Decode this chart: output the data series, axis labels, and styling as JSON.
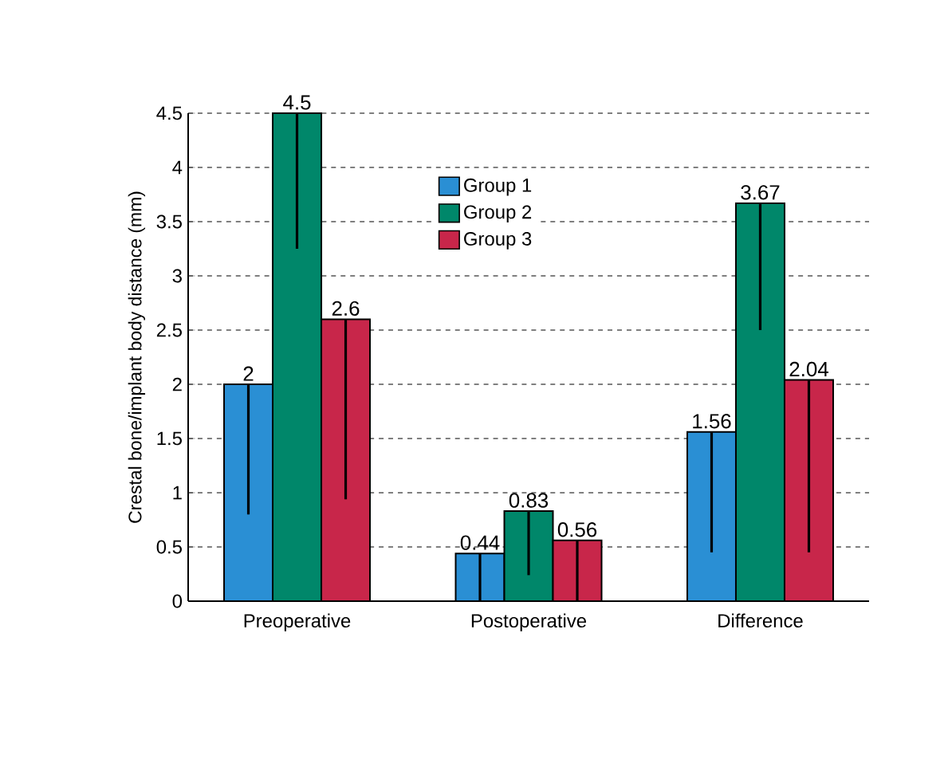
{
  "chart_data": {
    "type": "bar",
    "ylabel": "Crestal bone/implant body distance (mm)",
    "categories": [
      "Preoperative",
      "Postoperative",
      "Difference"
    ],
    "series": [
      {
        "name": "Group 1",
        "color": "#2a8fd4",
        "values": [
          2,
          0.44,
          1.56
        ],
        "value_labels": [
          "2",
          "0.44",
          "1.56"
        ],
        "errors": [
          [
            0.8,
            2
          ],
          [
            0,
            0.44
          ],
          [
            0.45,
            1.56
          ]
        ]
      },
      {
        "name": "Group 2",
        "color": "#00876a",
        "values": [
          4.5,
          0.83,
          3.67
        ],
        "value_labels": [
          "4.5",
          "0.83",
          "3.67"
        ],
        "errors": [
          [
            3.25,
            4.5
          ],
          [
            0.24,
            0.83
          ],
          [
            2.5,
            3.67
          ]
        ]
      },
      {
        "name": "Group 3",
        "color": "#c8264a",
        "values": [
          2.6,
          0.56,
          2.04
        ],
        "value_labels": [
          "2.6",
          "0.56",
          "2.04"
        ],
        "errors": [
          [
            0.94,
            2.6
          ],
          [
            0,
            0.56
          ],
          [
            0.45,
            2.04
          ]
        ]
      }
    ],
    "ylim": [
      0,
      4.5
    ],
    "yticks": [
      0,
      0.5,
      1,
      1.5,
      2,
      2.5,
      3,
      3.5,
      4,
      4.5
    ],
    "grid": "y",
    "legend": "top"
  }
}
